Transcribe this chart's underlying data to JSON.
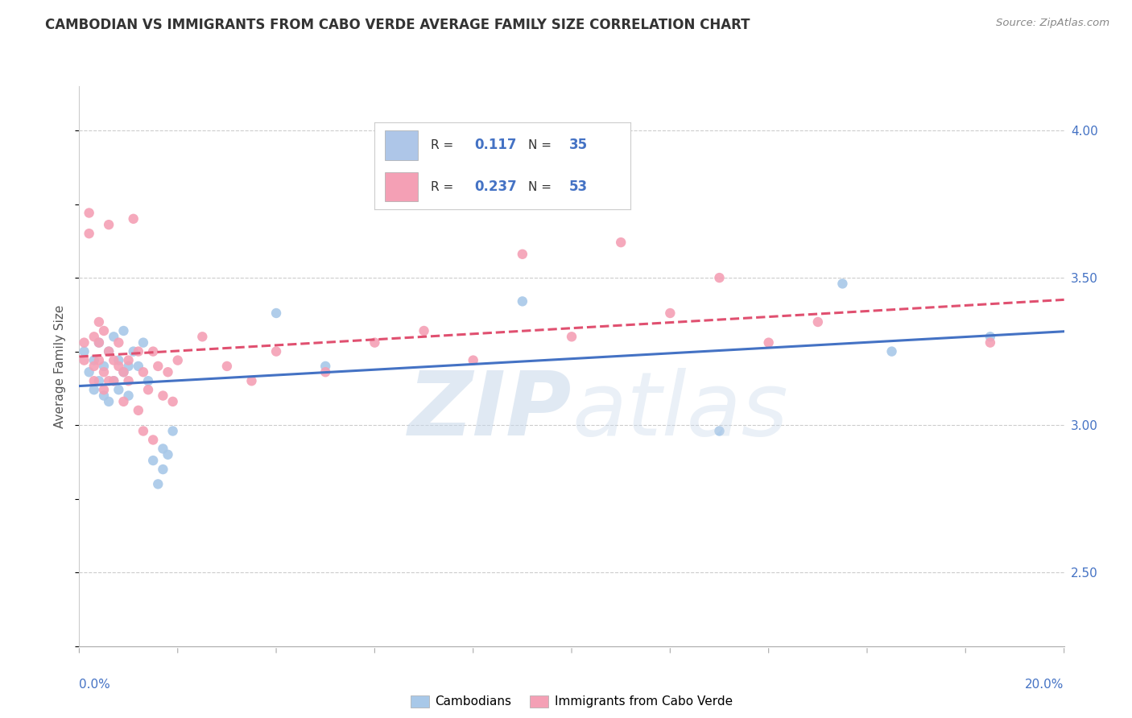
{
  "title": "CAMBODIAN VS IMMIGRANTS FROM CABO VERDE AVERAGE FAMILY SIZE CORRELATION CHART",
  "source": "Source: ZipAtlas.com",
  "ylabel": "Average Family Size",
  "xmin": 0.0,
  "xmax": 0.2,
  "ymin": 2.25,
  "ymax": 4.15,
  "yticks_right": [
    2.5,
    3.0,
    3.5,
    4.0
  ],
  "background_color": "#ffffff",
  "grid_color": "#cccccc",
  "series": [
    {
      "name": "Cambodians",
      "color": "#a8c8e8",
      "R": 0.117,
      "N": 35,
      "trend_color": "#4472c4",
      "trend_style": "solid",
      "points": [
        [
          0.001,
          3.25
        ],
        [
          0.002,
          3.18
        ],
        [
          0.003,
          3.22
        ],
        [
          0.003,
          3.12
        ],
        [
          0.004,
          3.28
        ],
        [
          0.004,
          3.15
        ],
        [
          0.005,
          3.2
        ],
        [
          0.005,
          3.1
        ],
        [
          0.006,
          3.25
        ],
        [
          0.006,
          3.08
        ],
        [
          0.007,
          3.3
        ],
        [
          0.007,
          3.15
        ],
        [
          0.008,
          3.22
        ],
        [
          0.008,
          3.12
        ],
        [
          0.009,
          3.32
        ],
        [
          0.009,
          3.18
        ],
        [
          0.01,
          3.2
        ],
        [
          0.01,
          3.1
        ],
        [
          0.011,
          3.25
        ],
        [
          0.012,
          3.2
        ],
        [
          0.013,
          3.28
        ],
        [
          0.014,
          3.15
        ],
        [
          0.015,
          2.88
        ],
        [
          0.016,
          2.8
        ],
        [
          0.017,
          2.92
        ],
        [
          0.017,
          2.85
        ],
        [
          0.018,
          2.9
        ],
        [
          0.019,
          2.98
        ],
        [
          0.04,
          3.38
        ],
        [
          0.05,
          3.2
        ],
        [
          0.09,
          3.42
        ],
        [
          0.13,
          2.98
        ],
        [
          0.155,
          3.48
        ],
        [
          0.165,
          3.25
        ],
        [
          0.185,
          3.3
        ]
      ]
    },
    {
      "name": "Immigrants from Cabo Verde",
      "color": "#f4a0b5",
      "R": 0.237,
      "N": 53,
      "trend_color": "#e05070",
      "trend_style": "dashed",
      "points": [
        [
          0.001,
          3.28
        ],
        [
          0.001,
          3.22
        ],
        [
          0.002,
          3.72
        ],
        [
          0.002,
          3.65
        ],
        [
          0.003,
          3.15
        ],
        [
          0.003,
          3.3
        ],
        [
          0.003,
          3.2
        ],
        [
          0.004,
          3.35
        ],
        [
          0.004,
          3.22
        ],
        [
          0.004,
          3.28
        ],
        [
          0.005,
          3.32
        ],
        [
          0.005,
          3.18
        ],
        [
          0.005,
          3.12
        ],
        [
          0.006,
          3.25
        ],
        [
          0.006,
          3.15
        ],
        [
          0.006,
          3.68
        ],
        [
          0.007,
          3.22
        ],
        [
          0.007,
          3.15
        ],
        [
          0.008,
          3.2
        ],
        [
          0.008,
          3.28
        ],
        [
          0.009,
          3.18
        ],
        [
          0.009,
          3.08
        ],
        [
          0.01,
          3.22
        ],
        [
          0.01,
          3.15
        ],
        [
          0.011,
          3.7
        ],
        [
          0.012,
          3.25
        ],
        [
          0.012,
          3.05
        ],
        [
          0.013,
          3.18
        ],
        [
          0.013,
          2.98
        ],
        [
          0.014,
          3.12
        ],
        [
          0.015,
          3.25
        ],
        [
          0.015,
          2.95
        ],
        [
          0.016,
          3.2
        ],
        [
          0.017,
          3.1
        ],
        [
          0.018,
          3.18
        ],
        [
          0.019,
          3.08
        ],
        [
          0.02,
          3.22
        ],
        [
          0.025,
          3.3
        ],
        [
          0.03,
          3.2
        ],
        [
          0.035,
          3.15
        ],
        [
          0.04,
          3.25
        ],
        [
          0.05,
          3.18
        ],
        [
          0.06,
          3.28
        ],
        [
          0.07,
          3.32
        ],
        [
          0.08,
          3.22
        ],
        [
          0.09,
          3.58
        ],
        [
          0.1,
          3.3
        ],
        [
          0.11,
          3.62
        ],
        [
          0.12,
          3.38
        ],
        [
          0.13,
          3.5
        ],
        [
          0.14,
          3.28
        ],
        [
          0.15,
          3.35
        ],
        [
          0.185,
          3.28
        ]
      ]
    }
  ],
  "legend": {
    "R1": "0.117",
    "N1": "35",
    "R2": "0.237",
    "N2": "53",
    "box_color1": "#aec6e8",
    "box_color2": "#f4a0b5"
  },
  "title_fontsize": 12,
  "label_fontsize": 11,
  "tick_fontsize": 11
}
